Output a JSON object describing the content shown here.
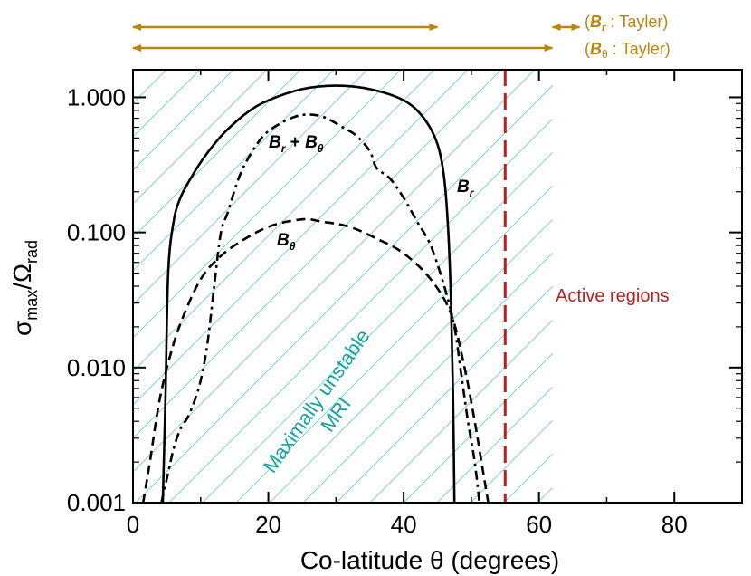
{
  "chart_data": {
    "type": "line",
    "title": "",
    "xlabel": "Co-latitude θ (degrees)",
    "ylabel_parts": {
      "sigma": "σ",
      "sigma_sub": "max",
      "slash": "/",
      "omega": "Ω",
      "omega_sub": "rad"
    },
    "xlim": [
      0,
      90
    ],
    "ylim": [
      0.001,
      1.6
    ],
    "yscale": "log",
    "xticks": [
      0,
      20,
      40,
      60,
      80
    ],
    "xtick_labels": [
      "0",
      "20",
      "40",
      "60",
      "80"
    ],
    "yticks": [
      0.001,
      0.01,
      0.1,
      1.0
    ],
    "ytick_labels": [
      "0.001",
      "0.010",
      "0.100",
      "1.000"
    ],
    "series": [
      {
        "name": "B_r",
        "style": "solid",
        "x": [
          4.4,
          4.8,
          5.2,
          6,
          7,
          8.5,
          10,
          12,
          14,
          17,
          20,
          25,
          30,
          35,
          40,
          43,
          45,
          46,
          46.6,
          47,
          47.3,
          47.5
        ],
        "y": [
          0.001,
          0.006,
          0.05,
          0.12,
          0.18,
          0.25,
          0.33,
          0.45,
          0.58,
          0.78,
          0.95,
          1.15,
          1.22,
          1.15,
          0.95,
          0.7,
          0.45,
          0.25,
          0.1,
          0.03,
          0.006,
          0.001
        ]
      },
      {
        "name": "B_theta",
        "style": "dashed",
        "x": [
          1.5,
          2.5,
          4,
          6,
          8,
          10,
          12,
          15,
          20,
          25,
          28,
          32,
          36,
          40,
          44,
          47,
          49,
          50.5,
          51.5,
          52.5
        ],
        "y": [
          0.001,
          0.002,
          0.006,
          0.015,
          0.028,
          0.045,
          0.06,
          0.08,
          0.11,
          0.125,
          0.12,
          0.11,
          0.09,
          0.07,
          0.045,
          0.025,
          0.01,
          0.004,
          0.002,
          0.001
        ]
      },
      {
        "name": "B_r + B_theta",
        "style": "dashdot",
        "x": [
          4.2,
          5,
          6,
          7,
          8,
          9,
          10,
          11,
          12,
          13,
          14,
          16,
          19,
          22,
          25,
          28,
          31,
          33,
          35,
          36,
          38,
          40,
          42,
          44,
          46,
          47.5,
          48.5,
          49.5,
          50.5,
          51.2
        ],
        "y": [
          0.001,
          0.0015,
          0.0025,
          0.0035,
          0.0042,
          0.0055,
          0.008,
          0.015,
          0.04,
          0.1,
          0.14,
          0.28,
          0.5,
          0.65,
          0.74,
          0.72,
          0.6,
          0.52,
          0.4,
          0.3,
          0.25,
          0.18,
          0.12,
          0.08,
          0.04,
          0.02,
          0.009,
          0.004,
          0.002,
          0.001
        ]
      }
    ],
    "vertical_line": {
      "x": 55,
      "style": "dashed",
      "color": "#b22222"
    },
    "annotations": {
      "br_label_main": "B",
      "br_label_sub": "r",
      "bt_label_main": "B",
      "bt_label_sub": "θ",
      "sum_label_main1": "B",
      "sum_label_sub1": "r",
      "sum_label_plus": " + ",
      "sum_label_main2": "B",
      "sum_label_sub2": "θ",
      "mri_line1": "Maximally unstable",
      "mri_line2": "MRI",
      "active_regions": "Active regions",
      "tayler_r_open": "(",
      "tayler_r_main": "B",
      "tayler_r_sub": "r",
      "tayler_r_rest": " : Tayler)",
      "tayler_t_open": "(",
      "tayler_t_main": "B",
      "tayler_t_sub": "θ",
      "tayler_t_rest": " : Tayler)"
    },
    "ranges": [
      {
        "name": "tayler-arrow-1",
        "x_start": 0,
        "x_end": 45
      },
      {
        "name": "tayler-arrow-br",
        "x_start": 62,
        "x_end": 66
      },
      {
        "name": "tayler-arrow-btheta",
        "x_start": 0,
        "x_end": 62
      }
    ],
    "hatch_region": {
      "x_start": 0,
      "x_end": 62
    },
    "colors": {
      "tayler": "#b8860b",
      "mri": "#17a2a2",
      "active": "#b22222",
      "hatch": "#7fd3c7",
      "curve": "#000000"
    }
  }
}
